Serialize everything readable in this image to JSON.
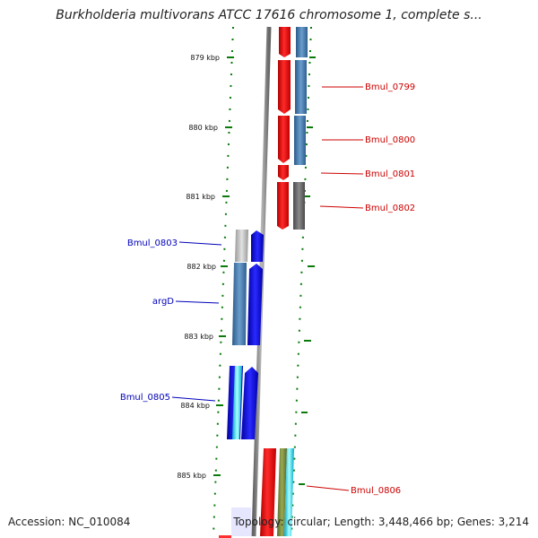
{
  "title": "Burkholderia multivorans ATCC 17616 chromosome 1, complete s...",
  "footer": {
    "accession": "Accession: NC_010084",
    "stats": "Topology: circular; Length: 3,448,466 bp; Genes: 3,214"
  },
  "ticks": [
    "879 kbp",
    "880 kbp",
    "881 kbp",
    "882 kbp",
    "883 kbp",
    "884 kbp",
    "885 kbp"
  ],
  "genes_right": [
    "Bmul_0799",
    "Bmul_0800",
    "Bmul_0801",
    "Bmul_0802",
    "Bmul_0806"
  ],
  "genes_left": [
    "Bmul_0803",
    "argD",
    "Bmul_0805"
  ],
  "colors": {
    "right_strand_label": "#cc0000",
    "left_strand_label": "#0000bb",
    "cds_forward": "#ff1010",
    "cds_reverse": "#1010ee",
    "ruler_tick": "#0a7a0a",
    "backbone": "#888888"
  }
}
